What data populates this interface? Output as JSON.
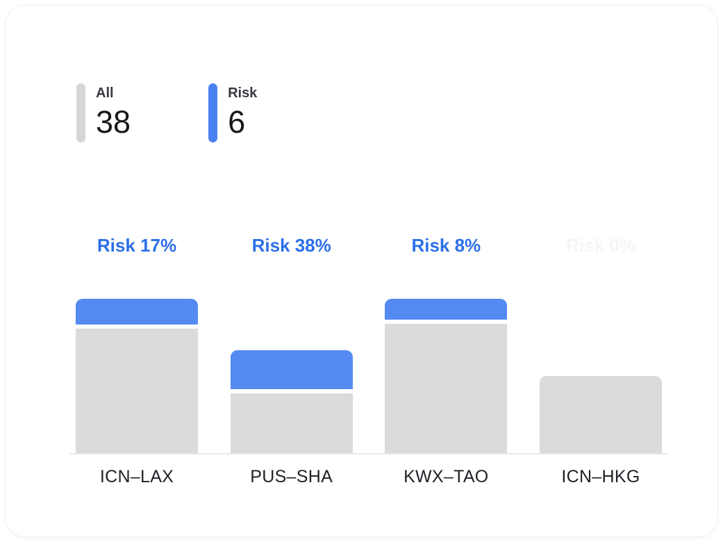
{
  "colors": {
    "accent_blue": "#4a82f2",
    "bar_blue": "#548af2",
    "bar_gray": "#dbdbde",
    "risk_text_blue": "#2d6fe9"
  },
  "legend": {
    "all": {
      "label": "All",
      "value": "38"
    },
    "risk": {
      "label": "Risk",
      "value": "6"
    }
  },
  "chart_data": {
    "type": "bar",
    "categories": [
      "ICN–LAX",
      "PUS–SHA",
      "KWX–TAO",
      "ICN–HKG"
    ],
    "series": [
      {
        "name": "All",
        "values": [
          12,
          8,
          12,
          6
        ]
      },
      {
        "name": "Risk",
        "values": [
          2,
          3,
          1,
          0
        ]
      }
    ],
    "risk_labels": [
      "Risk 17%",
      "Risk 38%",
      "Risk 8%",
      "Risk 0%"
    ],
    "risk_label_hidden": [
      false,
      false,
      false,
      true
    ],
    "title": "",
    "xlabel": "",
    "ylabel": "",
    "ylim": [
      0,
      12
    ],
    "grid": false,
    "legend_position": "top-left"
  }
}
